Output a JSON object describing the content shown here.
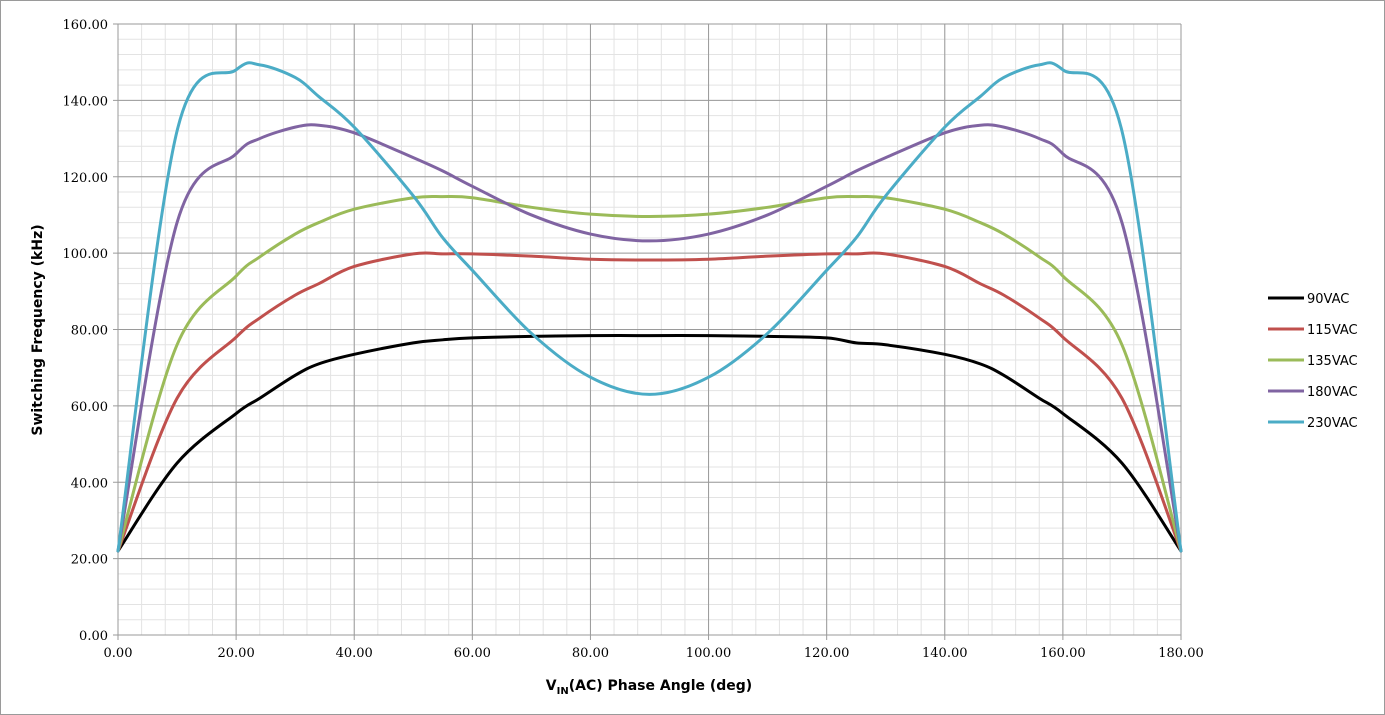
{
  "chart_data": {
    "type": "line",
    "title": "",
    "xlabel_main": "V",
    "xlabel_sub": "IN",
    "xlabel_rest": "(AC) Phase Angle (deg)",
    "ylabel": "Switching Frequency (kHz)",
    "xlim": [
      0,
      180
    ],
    "ylim": [
      0,
      160
    ],
    "x_ticks": [
      "0.00",
      "20.00",
      "40.00",
      "60.00",
      "80.00",
      "100.00",
      "120.00",
      "140.00",
      "160.00",
      "180.00"
    ],
    "y_ticks": [
      "0.00",
      "20.00",
      "40.00",
      "60.00",
      "80.00",
      "100.00",
      "120.00",
      "140.00",
      "160.00"
    ],
    "grid": true,
    "legend_position": "right",
    "x": [
      0,
      10,
      20,
      24,
      30,
      34,
      40,
      50,
      55,
      60,
      70,
      80,
      90,
      100,
      110,
      120,
      125,
      130,
      140,
      146,
      150,
      156,
      160,
      170,
      180
    ],
    "series": [
      {
        "name": "90VAC",
        "color": "#000000",
        "values": [
          22,
          45,
          58,
          62,
          68,
          71,
          73.5,
          76.5,
          77.3,
          77.8,
          78.2,
          78.4,
          78.4,
          78.4,
          78.2,
          77.8,
          76.5,
          76,
          73.5,
          71,
          68,
          62,
          58,
          45,
          22
        ]
      },
      {
        "name": "115VAC",
        "color": "#c0504d",
        "values": [
          22,
          62,
          78,
          83,
          89,
          92,
          96.5,
          99.8,
          99.8,
          99.8,
          99.2,
          98.4,
          98.2,
          98.4,
          99.2,
          99.8,
          99.8,
          99.8,
          96.5,
          92,
          89,
          83,
          78,
          62,
          22
        ]
      },
      {
        "name": "135VAC",
        "color": "#9bbb59",
        "values": [
          22,
          76,
          94,
          99,
          105,
          108,
          111.5,
          114.5,
          114.8,
          114.5,
          112,
          110.2,
          109.6,
          110.2,
          112,
          114.5,
          114.8,
          114.5,
          111.5,
          108,
          105,
          99,
          94,
          76,
          22
        ]
      },
      {
        "name": "180VAC",
        "color": "#8064a2",
        "values": [
          22,
          108,
          126,
          130,
          133,
          133.5,
          131.5,
          125,
          121.5,
          117.5,
          110,
          105,
          103.2,
          105,
          110,
          117.5,
          121.5,
          125,
          131.5,
          133.5,
          133,
          130,
          126,
          108,
          22
        ]
      },
      {
        "name": "230VAC",
        "color": "#4bacc6",
        "values": [
          22,
          132,
          148,
          149.3,
          146,
          141,
          133,
          115,
          104,
          95.5,
          79,
          67.5,
          63,
          67.5,
          79,
          95.5,
          104,
          115,
          133,
          141,
          146,
          149.3,
          148,
          132,
          22
        ]
      }
    ]
  }
}
